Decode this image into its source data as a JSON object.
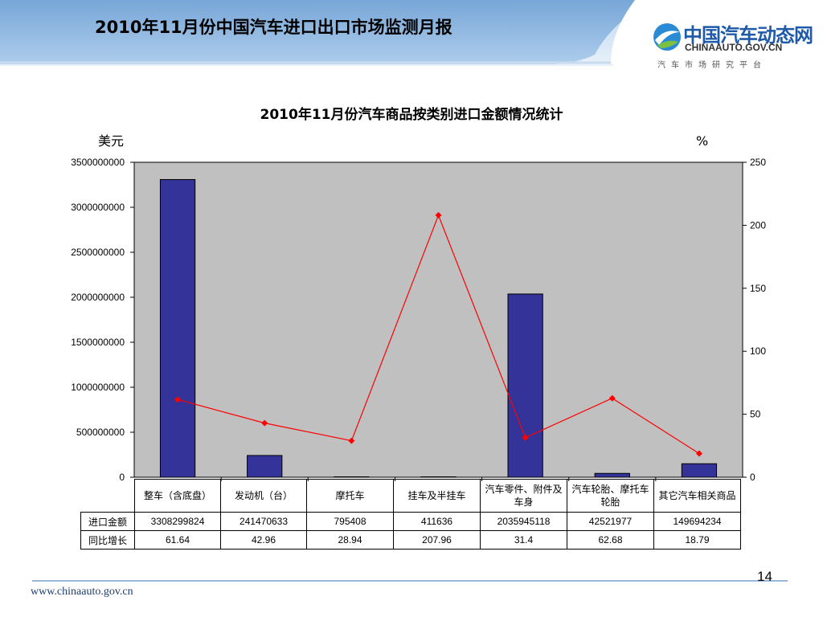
{
  "header": {
    "title": "2010年11月份中国汽车进口出口市场监测月报",
    "logo_text": "中国汽车动态网",
    "logo_domain": "CHINAAUTO.GOV.CN",
    "logo_slogan": "汽车市场研究平台"
  },
  "colors": {
    "bar": "#333399",
    "line": "#ff0000",
    "plot_bg": "#c0c0c0",
    "banner": "#4a8fd0"
  },
  "chart_data": {
    "type": "bar",
    "title": "2010年11月份汽车商品按类别进口金额情况统计",
    "ylabel": "美元",
    "y2label": "%",
    "ylim": [
      0,
      3500000000
    ],
    "y2lim": [
      0,
      250
    ],
    "yticks": [
      "3500000000",
      "3000000000",
      "2500000000",
      "2000000000",
      "1500000000",
      "1000000000",
      "500000000",
      "0"
    ],
    "y2ticks": [
      "250",
      "200",
      "150",
      "100",
      "50",
      "0"
    ],
    "categories": [
      "整车（含底盘）",
      "发动机（台）",
      "摩托车",
      "挂车及半挂车",
      "汽车零件、附件及车身",
      "汽车轮胎、摩托车轮胎",
      "其它汽车相关商品"
    ],
    "series": [
      {
        "name": "进口金额",
        "type": "bar",
        "axis": "left",
        "values": [
          3308299824,
          241470633,
          795408,
          411636,
          2035945118,
          42521977,
          149694234
        ]
      },
      {
        "name": "同比增长",
        "type": "line",
        "axis": "right",
        "values": [
          61.64,
          42.96,
          28.94,
          207.96,
          31.4,
          62.68,
          18.79
        ]
      }
    ],
    "table": {
      "rows": [
        {
          "label": "进口金额",
          "values": [
            "3308299824",
            "241470633",
            "795408",
            "411636",
            "2035945118",
            "42521977",
            "149694234"
          ]
        },
        {
          "label": "同比增长",
          "values": [
            "61.64",
            "42.96",
            "28.94",
            "207.96",
            "31.4",
            "62.68",
            "18.79"
          ]
        }
      ]
    }
  },
  "footer": {
    "url": "www.chinaauto.gov.cn",
    "page_number": "14"
  }
}
